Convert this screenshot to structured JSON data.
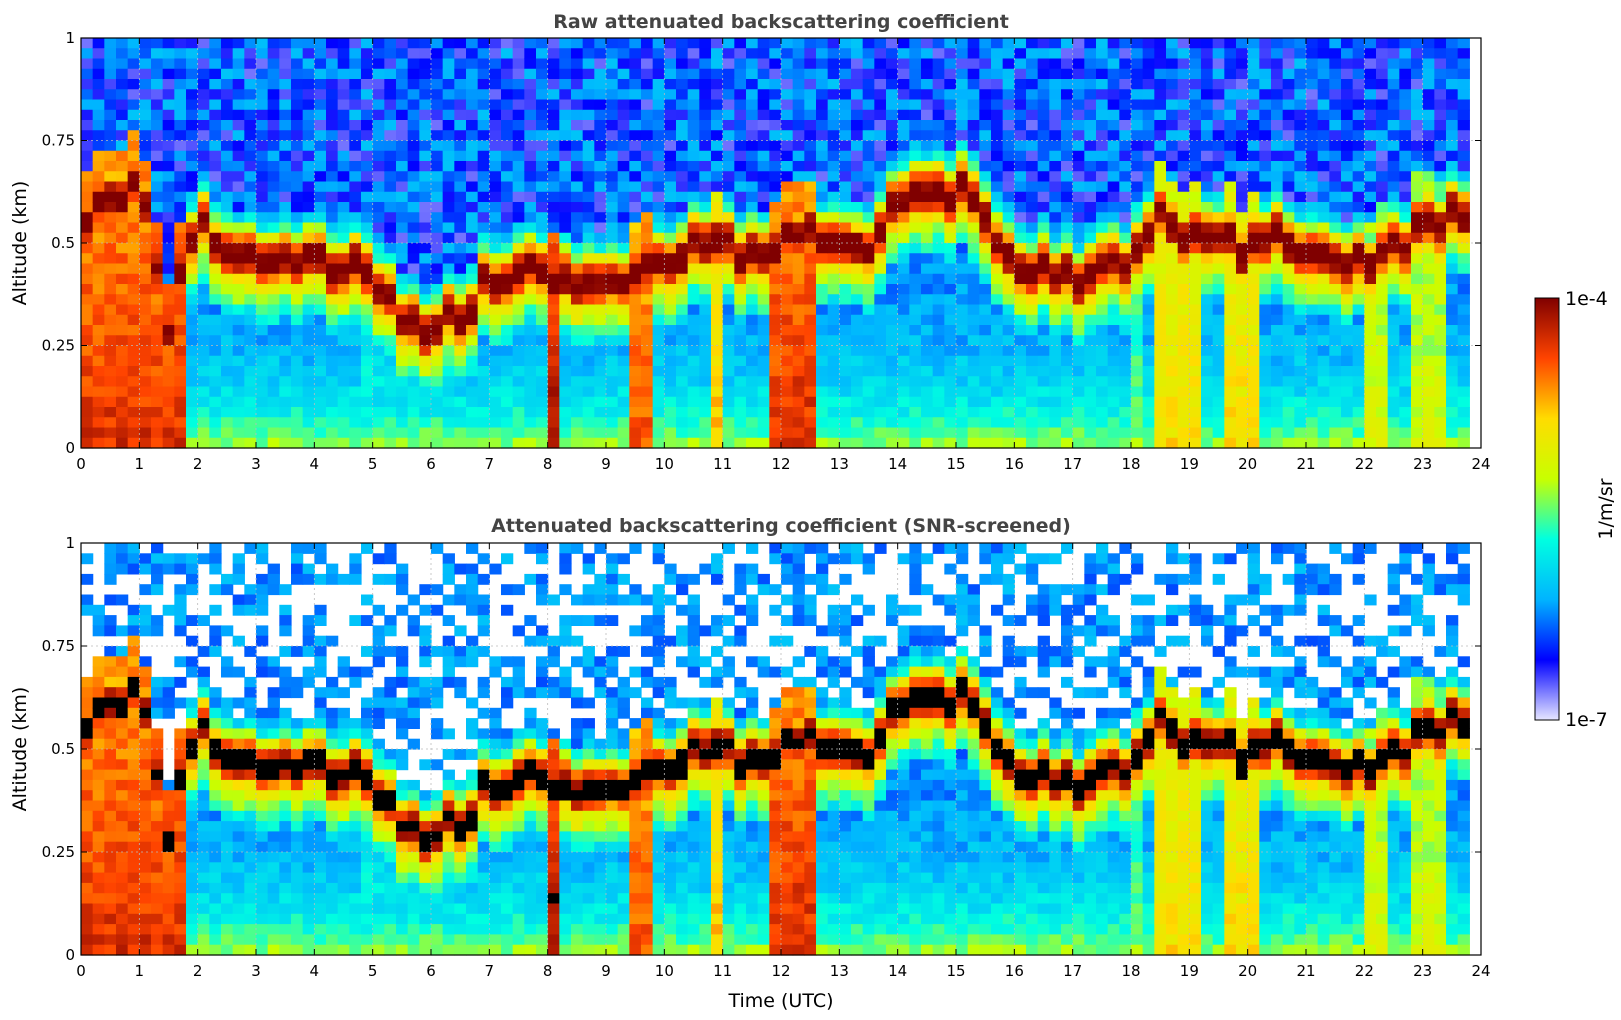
{
  "chart_data": [
    {
      "type": "heatmap",
      "id": "raw",
      "title": "Raw attenuated backscattering coefficient",
      "xlabel": "",
      "ylabel": "Altitude (km)",
      "xlim": [
        0,
        24
      ],
      "ylim": [
        0,
        1
      ],
      "xticks": [
        0,
        1,
        2,
        3,
        4,
        5,
        6,
        7,
        8,
        9,
        10,
        11,
        12,
        13,
        14,
        15,
        16,
        17,
        18,
        19,
        20,
        21,
        22,
        23,
        24
      ],
      "xtick_labels": [
        "0",
        "1",
        "2",
        "3",
        "4",
        "5",
        "6",
        "7",
        "8",
        "9",
        "10",
        "11",
        "12",
        "13",
        "14",
        "15",
        "16",
        "17",
        "18",
        "19",
        "20",
        "21",
        "22",
        "23",
        "24"
      ],
      "yticks": [
        0,
        0.25,
        0.5,
        0.75,
        1
      ],
      "ytick_labels": [
        "0",
        "0.25",
        "0.5",
        "0.75",
        "1"
      ],
      "grid": true,
      "screened": false
    },
    {
      "type": "heatmap",
      "id": "screened",
      "title": "Attenuated backscattering coefficient (SNR-screened)",
      "xlabel": "Time (UTC)",
      "ylabel": "Altitude (km)",
      "xlim": [
        0,
        24
      ],
      "ylim": [
        0,
        1
      ],
      "xticks": [
        0,
        1,
        2,
        3,
        4,
        5,
        6,
        7,
        8,
        9,
        10,
        11,
        12,
        13,
        14,
        15,
        16,
        17,
        18,
        19,
        20,
        21,
        22,
        23,
        24
      ],
      "xtick_labels": [
        "0",
        "1",
        "2",
        "3",
        "4",
        "5",
        "6",
        "7",
        "8",
        "9",
        "10",
        "11",
        "12",
        "13",
        "14",
        "15",
        "16",
        "17",
        "18",
        "19",
        "20",
        "21",
        "22",
        "23",
        "24"
      ],
      "yticks": [
        0,
        0.25,
        0.5,
        0.75,
        1
      ],
      "ytick_labels": [
        "0",
        "0.25",
        "0.5",
        "0.75",
        "1"
      ],
      "grid": true,
      "screened": true
    }
  ],
  "colorbar": {
    "label": "1/m/sr",
    "max_label": "1e-4",
    "min_label": "1e-7",
    "scale": "log",
    "colormap": "jet",
    "colors": [
      "#e6e6ff",
      "#0000ff",
      "#00b4ff",
      "#00ffe0",
      "#c8ff00",
      "#ffdc00",
      "#ff4400",
      "#800000"
    ]
  },
  "layer": {
    "cloud_profile": [
      [
        0,
        0.55
      ],
      [
        0.5,
        0.6
      ],
      [
        1,
        0.62
      ],
      [
        1.5,
        0.3
      ],
      [
        2,
        0.55
      ],
      [
        2.5,
        0.48
      ],
      [
        3,
        0.47
      ],
      [
        4,
        0.45
      ],
      [
        5,
        0.42
      ],
      [
        5.6,
        0.3
      ],
      [
        6,
        0.3
      ],
      [
        6.5,
        0.33
      ],
      [
        7,
        0.4
      ],
      [
        7.5,
        0.44
      ],
      [
        8,
        0.43
      ],
      [
        8.5,
        0.37
      ],
      [
        9,
        0.4
      ],
      [
        9.5,
        0.43
      ],
      [
        10,
        0.45
      ],
      [
        10.5,
        0.5
      ],
      [
        11,
        0.49
      ],
      [
        11.5,
        0.47
      ],
      [
        12,
        0.5
      ],
      [
        12.5,
        0.52
      ],
      [
        13,
        0.47
      ],
      [
        13.5,
        0.5
      ],
      [
        14,
        0.6
      ],
      [
        14.5,
        0.65
      ],
      [
        15,
        0.62
      ],
      [
        15.5,
        0.57
      ],
      [
        16,
        0.42
      ],
      [
        16.5,
        0.45
      ],
      [
        17,
        0.42
      ],
      [
        17.5,
        0.42
      ],
      [
        18,
        0.45
      ],
      [
        18.5,
        0.55
      ],
      [
        19,
        0.52
      ],
      [
        19.5,
        0.5
      ],
      [
        20,
        0.48
      ],
      [
        20.5,
        0.52
      ],
      [
        21,
        0.48
      ],
      [
        21.5,
        0.45
      ],
      [
        22,
        0.45
      ],
      [
        22.5,
        0.5
      ],
      [
        23,
        0.52
      ],
      [
        23.5,
        0.58
      ],
      [
        24,
        0.55
      ]
    ],
    "column_features": [
      [
        0.8,
        0.95,
        0.9
      ],
      [
        2.0,
        0.05,
        0.3
      ],
      [
        5.0,
        0.12,
        0.4
      ],
      [
        8.15,
        0.1,
        0.95
      ],
      [
        9.55,
        0.15,
        0.85
      ],
      [
        10.95,
        0.1,
        0.75
      ],
      [
        12.2,
        0.35,
        0.9
      ],
      [
        18.1,
        0.12,
        0.5
      ],
      [
        18.85,
        0.4,
        0.7
      ],
      [
        19.9,
        0.3,
        0.7
      ],
      [
        22.2,
        0.2,
        0.6
      ],
      [
        23.1,
        0.2,
        0.6
      ]
    ],
    "data_end_hour": 23.8
  }
}
